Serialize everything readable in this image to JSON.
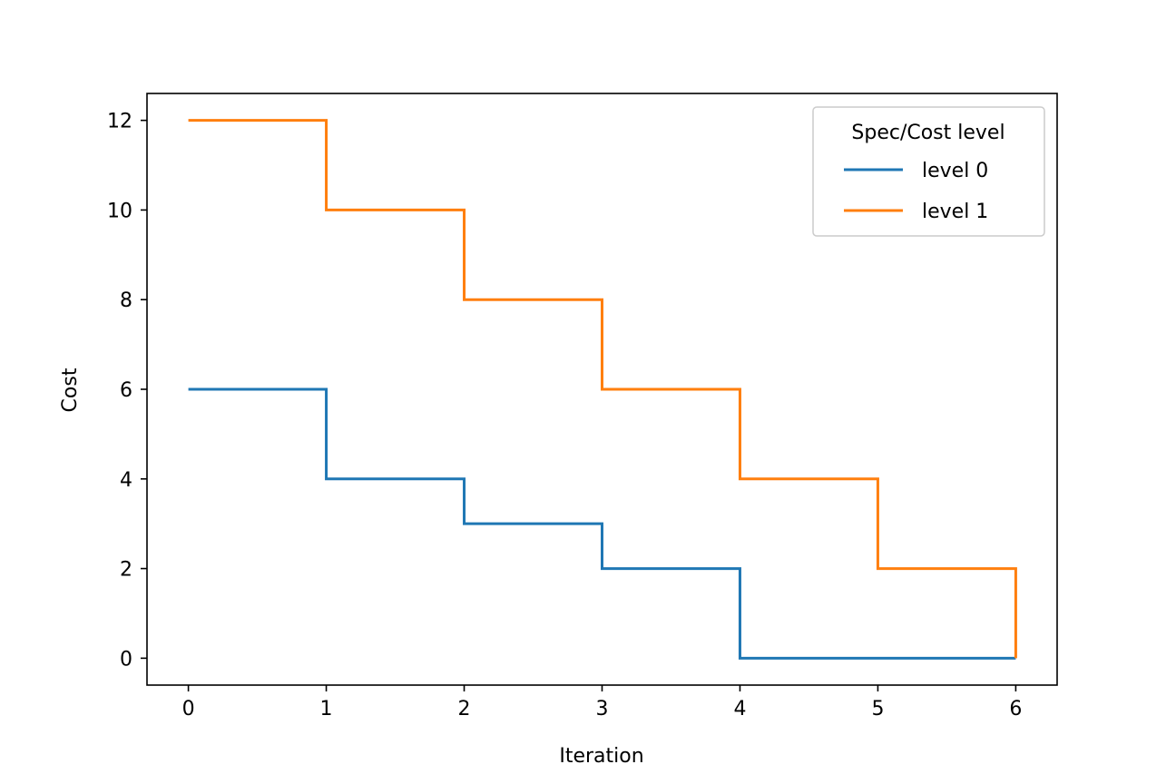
{
  "chart_data": {
    "type": "line",
    "drawstyle": "steps-post",
    "title": "",
    "xlabel": "Iteration",
    "ylabel": "Cost",
    "xlim": [
      -0.3,
      6.3
    ],
    "ylim": [
      -0.6,
      12.6
    ],
    "xticks": [
      0,
      1,
      2,
      3,
      4,
      5,
      6
    ],
    "yticks": [
      0,
      2,
      4,
      6,
      8,
      10,
      12
    ],
    "grid": false,
    "legend": {
      "title": "Spec/Cost level",
      "placement": "top-right"
    },
    "series": [
      {
        "name": "level 0",
        "color": "#1f77b4",
        "x": [
          0,
          1,
          2,
          3,
          4,
          5,
          6
        ],
        "y": [
          6,
          4,
          3,
          2,
          0,
          0,
          0
        ]
      },
      {
        "name": "level 1",
        "color": "#ff7f0e",
        "x": [
          0,
          1,
          2,
          3,
          4,
          5,
          6
        ],
        "y": [
          12,
          10,
          8,
          6,
          4,
          2,
          0
        ]
      }
    ]
  }
}
